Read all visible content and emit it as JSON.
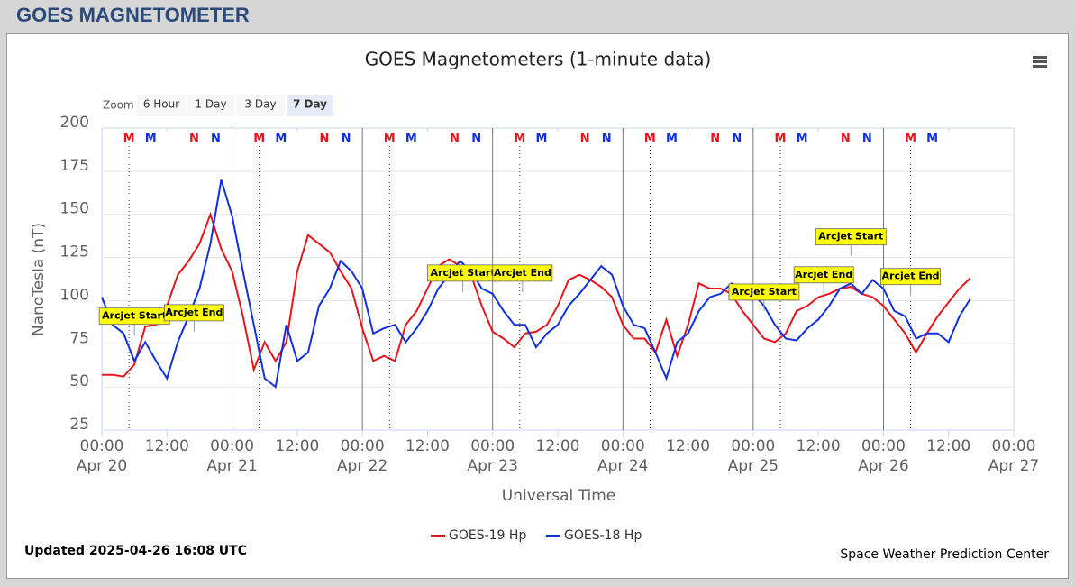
{
  "header": {
    "title": "GOES MAGNETOMETER"
  },
  "chart_data": {
    "type": "line",
    "title": "GOES Magnetometers (1-minute data)",
    "ylabel": "NanoTesla (nT)",
    "xlabel": "Universal Time",
    "updated": "Updated 2025-04-26 16:08 UTC",
    "credit": "Space Weather Prediction Center",
    "zoom": {
      "label": "Zoom",
      "buttons": [
        "6 Hour",
        "1 Day",
        "3 Day",
        "7 Day"
      ],
      "selected": 3
    },
    "ylim": [
      25,
      200
    ],
    "yticks": [
      25,
      50,
      75,
      100,
      125,
      150,
      175,
      200
    ],
    "grid": true,
    "xlim": [
      "Apr 20 00:00",
      "Apr 27 00:00"
    ],
    "xticks": [
      {
        "value": "Apr 20 00:00",
        "label": [
          "00:00",
          "Apr 20"
        ]
      },
      {
        "value": "Apr 20 12:00",
        "label": [
          "12:00"
        ]
      },
      {
        "value": "Apr 21 00:00",
        "label": [
          "00:00",
          "Apr 21"
        ]
      },
      {
        "value": "Apr 21 12:00",
        "label": [
          "12:00"
        ]
      },
      {
        "value": "Apr 22 00:00",
        "label": [
          "00:00",
          "Apr 22"
        ]
      },
      {
        "value": "Apr 22 12:00",
        "label": [
          "12:00"
        ]
      },
      {
        "value": "Apr 23 00:00",
        "label": [
          "00:00",
          "Apr 23"
        ]
      },
      {
        "value": "Apr 23 12:00",
        "label": [
          "12:00"
        ]
      },
      {
        "value": "Apr 24 00:00",
        "label": [
          "00:00",
          "Apr 24"
        ]
      },
      {
        "value": "Apr 24 12:00",
        "label": [
          "12:00"
        ]
      },
      {
        "value": "Apr 25 00:00",
        "label": [
          "00:00",
          "Apr 25"
        ]
      },
      {
        "value": "Apr 25 12:00",
        "label": [
          "12:00"
        ]
      },
      {
        "value": "Apr 26 00:00",
        "label": [
          "00:00",
          "Apr 26"
        ]
      },
      {
        "value": "Apr 26 12:00",
        "label": [
          "12:00"
        ]
      },
      {
        "value": "Apr 27 00:00",
        "label": [
          "00:00",
          "Apr 27"
        ]
      }
    ],
    "x": [
      "Apr 20 00:00",
      "Apr 20 02:00",
      "Apr 20 04:00",
      "Apr 20 06:00",
      "Apr 20 08:00",
      "Apr 20 10:00",
      "Apr 20 12:00",
      "Apr 20 14:00",
      "Apr 20 16:00",
      "Apr 20 18:00",
      "Apr 20 20:00",
      "Apr 20 22:00",
      "Apr 21 00:00",
      "Apr 21 02:00",
      "Apr 21 04:00",
      "Apr 21 06:00",
      "Apr 21 08:00",
      "Apr 21 10:00",
      "Apr 21 12:00",
      "Apr 21 14:00",
      "Apr 21 16:00",
      "Apr 21 18:00",
      "Apr 21 20:00",
      "Apr 21 22:00",
      "Apr 22 00:00",
      "Apr 22 02:00",
      "Apr 22 04:00",
      "Apr 22 06:00",
      "Apr 22 08:00",
      "Apr 22 10:00",
      "Apr 22 12:00",
      "Apr 22 14:00",
      "Apr 22 16:00",
      "Apr 22 18:00",
      "Apr 22 20:00",
      "Apr 22 22:00",
      "Apr 23 00:00",
      "Apr 23 02:00",
      "Apr 23 04:00",
      "Apr 23 06:00",
      "Apr 23 08:00",
      "Apr 23 10:00",
      "Apr 23 12:00",
      "Apr 23 14:00",
      "Apr 23 16:00",
      "Apr 23 18:00",
      "Apr 23 20:00",
      "Apr 23 22:00",
      "Apr 24 00:00",
      "Apr 24 02:00",
      "Apr 24 04:00",
      "Apr 24 06:00",
      "Apr 24 08:00",
      "Apr 24 10:00",
      "Apr 24 12:00",
      "Apr 24 14:00",
      "Apr 24 16:00",
      "Apr 24 18:00",
      "Apr 24 20:00",
      "Apr 24 22:00",
      "Apr 25 00:00",
      "Apr 25 02:00",
      "Apr 25 04:00",
      "Apr 25 06:00",
      "Apr 25 08:00",
      "Apr 25 10:00",
      "Apr 25 12:00",
      "Apr 25 14:00",
      "Apr 25 16:00",
      "Apr 25 18:00",
      "Apr 25 20:00",
      "Apr 25 22:00",
      "Apr 26 00:00",
      "Apr 26 02:00",
      "Apr 26 04:00",
      "Apr 26 06:00",
      "Apr 26 08:00",
      "Apr 26 10:00",
      "Apr 26 12:00",
      "Apr 26 14:00",
      "Apr 26 16:00"
    ],
    "series": [
      {
        "name": "GOES-19 Hp",
        "color": "#e8141c",
        "values": [
          57,
          57,
          56,
          63,
          85,
          86,
          97,
          115,
          123,
          133,
          150,
          130,
          117,
          91,
          60,
          76,
          65,
          76,
          117,
          138,
          133,
          128,
          117,
          107,
          84,
          65,
          68,
          65,
          86,
          94,
          107,
          120,
          124,
          120,
          115,
          97,
          82,
          78,
          73,
          81,
          82,
          86,
          97,
          112,
          115,
          112,
          108,
          102,
          86,
          78,
          78,
          70,
          89,
          68,
          86,
          110,
          107,
          107,
          104,
          94,
          86,
          78,
          76,
          81,
          94,
          97,
          102,
          104,
          107,
          108,
          104,
          102,
          97,
          89,
          81,
          70,
          81,
          91,
          99,
          107,
          113
        ]
      },
      {
        "name": "GOES-18 Hp",
        "color": "#1030e0",
        "values": [
          102,
          86,
          81,
          65,
          76,
          65,
          55,
          76,
          91,
          107,
          133,
          170,
          149,
          117,
          86,
          55,
          50,
          86,
          65,
          70,
          97,
          107,
          123,
          117,
          107,
          81,
          84,
          86,
          76,
          84,
          94,
          107,
          115,
          123,
          117,
          107,
          104,
          94,
          86,
          86,
          73,
          81,
          86,
          97,
          104,
          112,
          120,
          115,
          97,
          86,
          84,
          70,
          55,
          76,
          81,
          94,
          102,
          104,
          110,
          107,
          104,
          97,
          86,
          78,
          77,
          84,
          89,
          97,
          107,
          110,
          104,
          112,
          107,
          94,
          91,
          78,
          81,
          81,
          76,
          91,
          101
        ]
      }
    ],
    "markers": [
      {
        "text": "M",
        "color": "#e8141c",
        "x": "Apr 20 05:00",
        "dotted": true
      },
      {
        "text": "M",
        "color": "#1030e0",
        "x": "Apr 20 09:00"
      },
      {
        "text": "N",
        "color": "#e8141c",
        "x": "Apr 20 17:00"
      },
      {
        "text": "N",
        "color": "#1030e0",
        "x": "Apr 20 21:00"
      },
      {
        "text": "M",
        "color": "#e8141c",
        "x": "Apr 21 05:00",
        "dotted": true
      },
      {
        "text": "M",
        "color": "#1030e0",
        "x": "Apr 21 09:00"
      },
      {
        "text": "N",
        "color": "#e8141c",
        "x": "Apr 21 17:00"
      },
      {
        "text": "N",
        "color": "#1030e0",
        "x": "Apr 21 21:00"
      },
      {
        "text": "M",
        "color": "#e8141c",
        "x": "Apr 22 05:00",
        "dotted": true
      },
      {
        "text": "M",
        "color": "#1030e0",
        "x": "Apr 22 09:00"
      },
      {
        "text": "N",
        "color": "#e8141c",
        "x": "Apr 22 17:00"
      },
      {
        "text": "N",
        "color": "#1030e0",
        "x": "Apr 22 21:00"
      },
      {
        "text": "M",
        "color": "#e8141c",
        "x": "Apr 23 05:00",
        "dotted": true
      },
      {
        "text": "M",
        "color": "#1030e0",
        "x": "Apr 23 09:00"
      },
      {
        "text": "N",
        "color": "#e8141c",
        "x": "Apr 23 17:00"
      },
      {
        "text": "N",
        "color": "#1030e0",
        "x": "Apr 23 21:00"
      },
      {
        "text": "M",
        "color": "#e8141c",
        "x": "Apr 24 05:00",
        "dotted": true
      },
      {
        "text": "M",
        "color": "#1030e0",
        "x": "Apr 24 09:00"
      },
      {
        "text": "N",
        "color": "#e8141c",
        "x": "Apr 24 17:00"
      },
      {
        "text": "N",
        "color": "#1030e0",
        "x": "Apr 24 21:00"
      },
      {
        "text": "M",
        "color": "#e8141c",
        "x": "Apr 25 05:00",
        "dotted": true
      },
      {
        "text": "M",
        "color": "#1030e0",
        "x": "Apr 25 09:00"
      },
      {
        "text": "N",
        "color": "#e8141c",
        "x": "Apr 25 17:00"
      },
      {
        "text": "N",
        "color": "#1030e0",
        "x": "Apr 25 21:00"
      },
      {
        "text": "M",
        "color": "#e8141c",
        "x": "Apr 26 05:00",
        "dotted": true
      },
      {
        "text": "M",
        "color": "#1030e0",
        "x": "Apr 26 09:00"
      }
    ],
    "annotations": [
      {
        "text": "Arcjet Start",
        "x": "Apr 20 06:00",
        "y": 80
      },
      {
        "text": "Arcjet End",
        "x": "Apr 20 17:00",
        "y": 82
      },
      {
        "text": "Arcjet Start",
        "x": "Apr 22 18:30",
        "y": 105
      },
      {
        "text": "Arcjet End",
        "x": "Apr 23 05:30",
        "y": 105
      },
      {
        "text": "Arcjet Start",
        "x": "Apr 25 02:00",
        "y": 94
      },
      {
        "text": "Arcjet End",
        "x": "Apr 25 13:00",
        "y": 104
      },
      {
        "text": "Arcjet Start",
        "x": "Apr 25 18:00",
        "y": 126
      },
      {
        "text": "Arcjet End",
        "x": "Apr 26 05:00",
        "y": 103
      }
    ]
  }
}
